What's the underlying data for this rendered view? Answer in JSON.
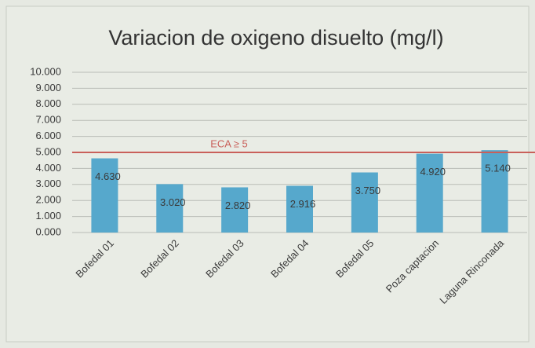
{
  "chart_data": {
    "type": "bar",
    "title": "Variacion de oxigeno disuelto (mg/l)",
    "categories": [
      "Bofedal 01",
      "Bofedal  02",
      "Bofedal 03",
      "Bofedal 04",
      "Bofedal 05",
      "Poza captacion",
      "Laguna Rinconada"
    ],
    "values": [
      4.63,
      3.02,
      2.82,
      2.916,
      3.75,
      4.92,
      5.14
    ],
    "value_labels": [
      "4.630",
      "3.020",
      "2.820",
      "2.916",
      "3.750",
      "4.920",
      "5.140"
    ],
    "color": "#56a8cc",
    "ylim": [
      0,
      10
    ],
    "yticks": [
      {
        "value": 0,
        "label": "0.000"
      },
      {
        "value": 1,
        "label": "1.000"
      },
      {
        "value": 2,
        "label": "2.000"
      },
      {
        "value": 3,
        "label": "3.000"
      },
      {
        "value": 4,
        "label": "4.000"
      },
      {
        "value": 5,
        "label": "5.000"
      },
      {
        "value": 6,
        "label": "6.000"
      },
      {
        "value": 7,
        "label": "7.000"
      },
      {
        "value": 8,
        "label": "8.000"
      },
      {
        "value": 9,
        "label": "9.000"
      },
      {
        "value": 10,
        "label": "10.000"
      }
    ],
    "grid": true,
    "reference_line": {
      "value": 5,
      "label": "ECA ≥ 5",
      "color": "#c9605a"
    }
  }
}
